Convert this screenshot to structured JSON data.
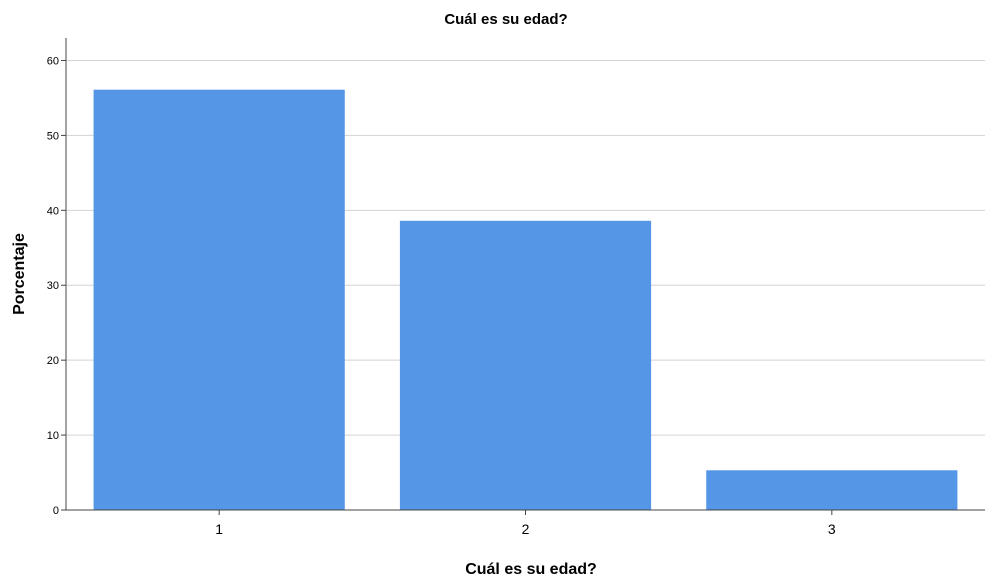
{
  "chart_data": {
    "type": "bar",
    "title": "Cuál es su edad?",
    "xlabel": "Cuál es su edad?",
    "ylabel": "Porcentaje",
    "categories": [
      "1",
      "2",
      "3"
    ],
    "values": [
      56.1,
      38.6,
      5.3
    ],
    "ylim": [
      0,
      63
    ],
    "yticks": [
      0,
      10,
      20,
      30,
      40,
      50,
      60
    ],
    "grid": true,
    "bar_color": "#5596e6",
    "grid_color": "#d3d3d3",
    "axis_color": "#444444"
  }
}
